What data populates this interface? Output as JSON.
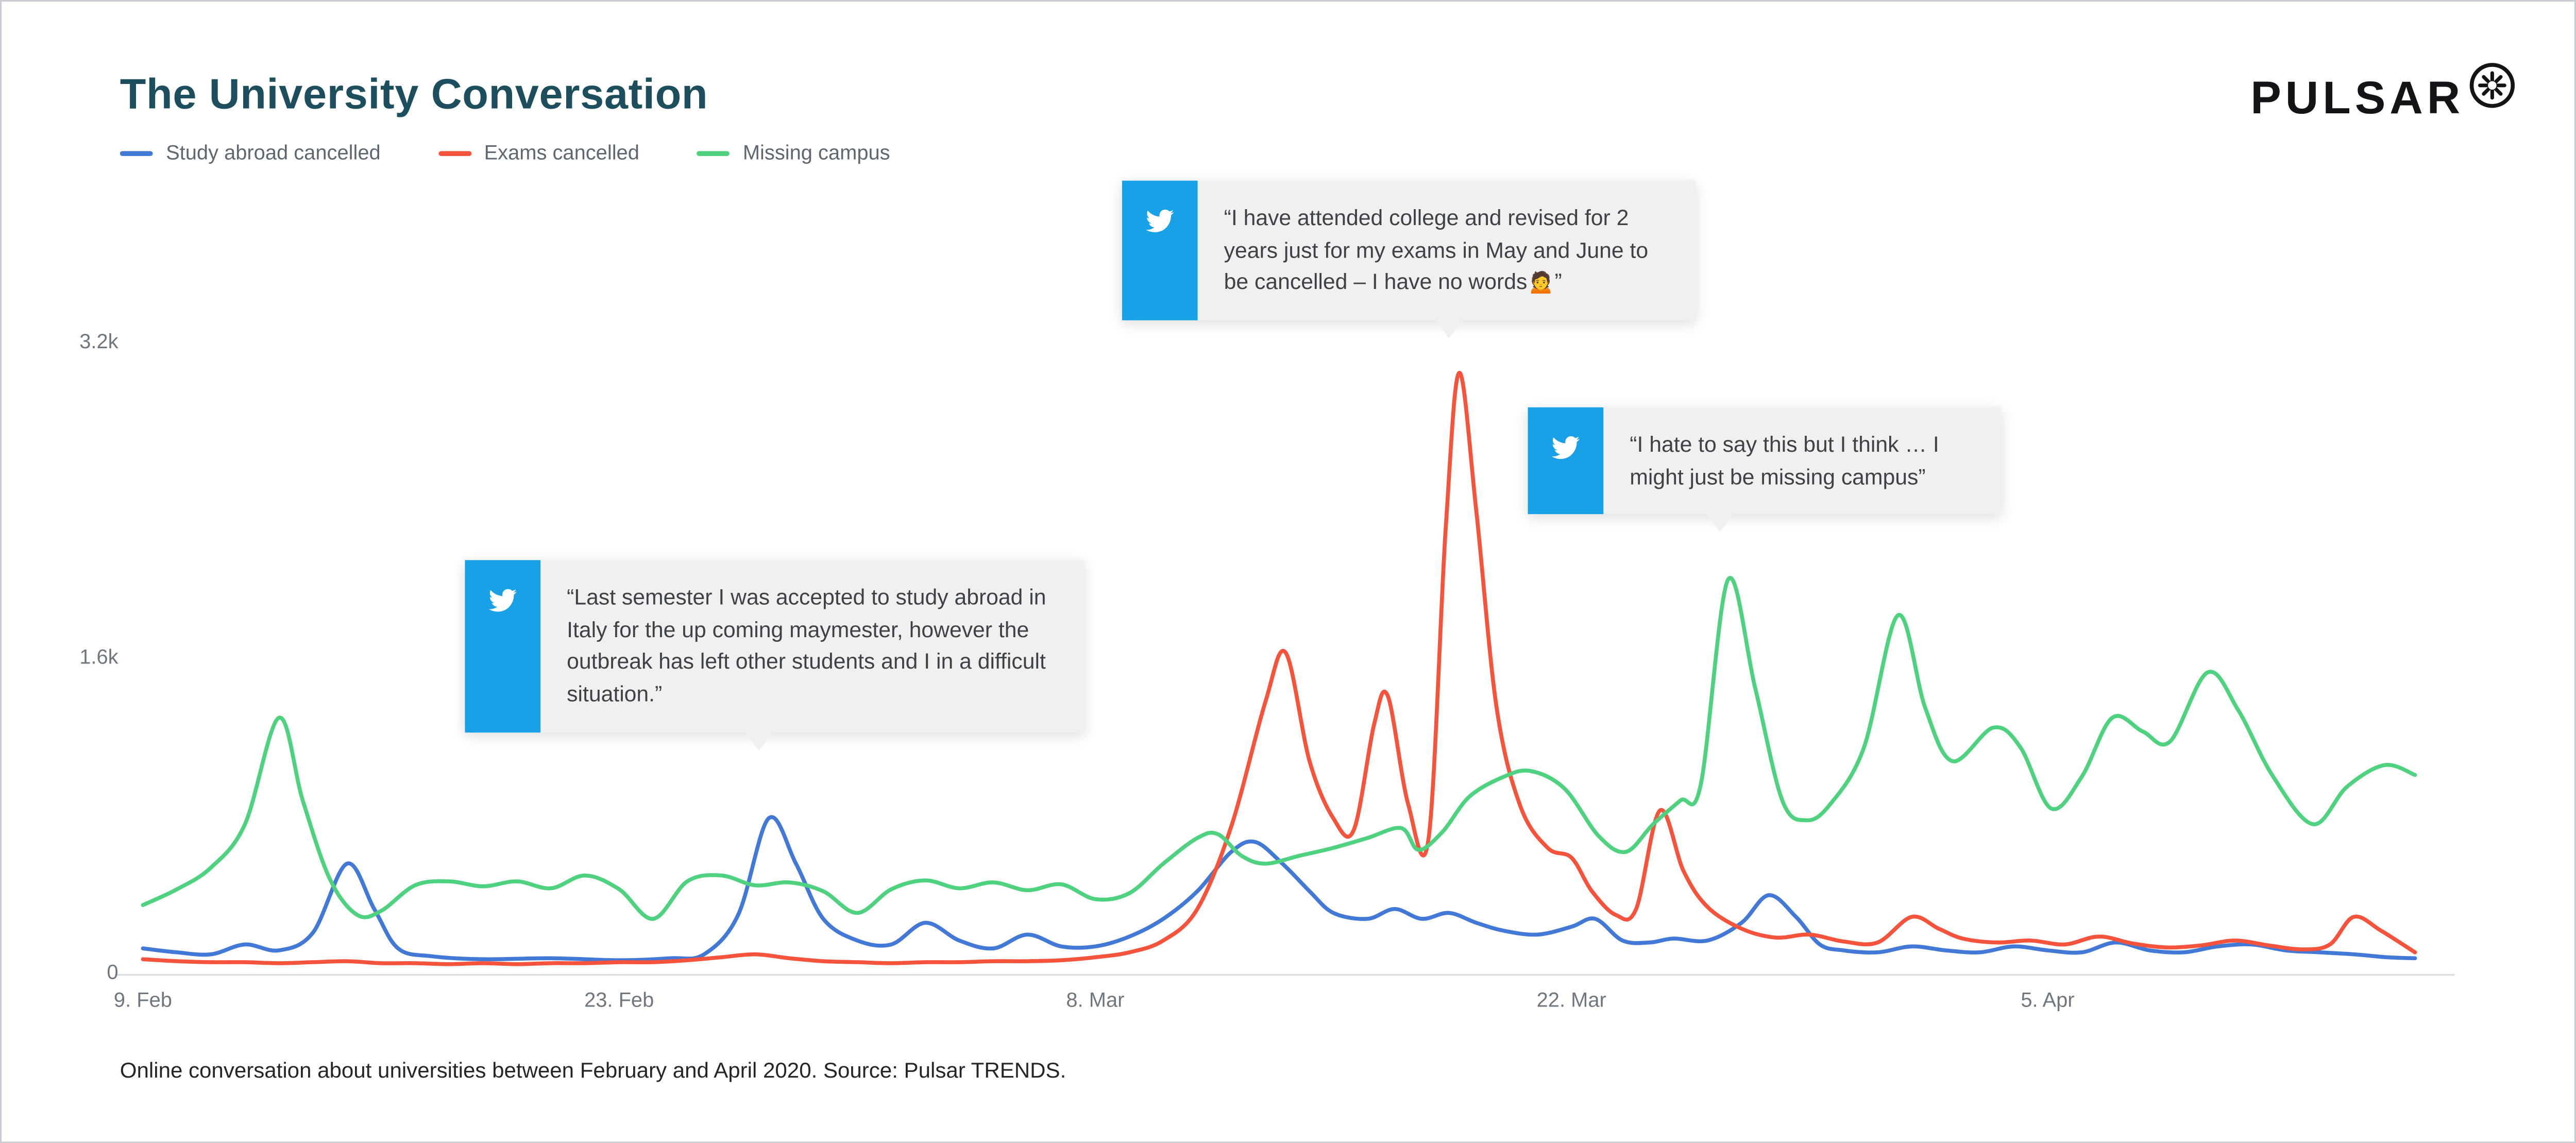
{
  "header": {
    "title": "The University Conversation",
    "brand": "PULSAR"
  },
  "caption": "Online conversation about universities between February and April 2020. Source: Pulsar TRENDS.",
  "colors": {
    "background": "#ffffff",
    "frame_border": "#c9ced4",
    "title": "#1c4e5d",
    "text_dark": "#22262a",
    "axis_label": "#6e7780",
    "legend_label": "#5d6771",
    "axis_line": "#d9dde1",
    "twitter_blue": "#18a1e6",
    "callout_bg": "#f0f0f1",
    "callout_text": "#3c4248",
    "brand": "#121417"
  },
  "annotations": [
    {
      "id": "exams",
      "icon": "twitter-icon",
      "text": "“I have attended college and revised for 2 years just for my exams in May and June to be cancelled – I have no words🙍”"
    },
    {
      "id": "missing-campus",
      "icon": "twitter-icon",
      "text": "“I hate to say this but I think … I might just be missing campus”"
    },
    {
      "id": "study-abroad",
      "icon": "twitter-icon",
      "text": "“Last semester I was accepted to study abroad in Italy for the up coming maymester, however the outbreak has left other students and I in a difficult situation.”"
    }
  ],
  "chart_data": {
    "type": "line",
    "title": "The University Conversation",
    "xlabel": "",
    "ylabel": "",
    "grid": false,
    "legend_position": "top-left",
    "x_axis": {
      "unit": "days since 9 Feb 2020",
      "tick_labels": [
        "9. Feb",
        "23. Feb",
        "8. Mar",
        "22. Mar",
        "5. Apr"
      ],
      "tick_days": [
        0,
        14,
        28,
        42,
        56
      ],
      "day_range": [
        0,
        66.8
      ]
    },
    "y_axis": {
      "tick_labels": [
        "0",
        "1.6k",
        "3.2k"
      ],
      "tick_values": [
        0,
        1600,
        3200
      ],
      "range": [
        0,
        3200
      ]
    },
    "series": [
      {
        "name": "Study abroad cancelled",
        "color": "#4379d6",
        "points": [
          [
            0,
            130
          ],
          [
            1,
            110
          ],
          [
            2,
            100
          ],
          [
            3,
            150
          ],
          [
            4,
            120
          ],
          [
            5,
            210
          ],
          [
            6,
            560
          ],
          [
            6.8,
            330
          ],
          [
            7.5,
            130
          ],
          [
            8.5,
            90
          ],
          [
            10,
            75
          ],
          [
            12,
            80
          ],
          [
            14,
            70
          ],
          [
            15.5,
            80
          ],
          [
            16.5,
            100
          ],
          [
            17.5,
            300
          ],
          [
            18.4,
            790
          ],
          [
            19.2,
            560
          ],
          [
            20,
            280
          ],
          [
            21,
            170
          ],
          [
            22,
            150
          ],
          [
            23,
            260
          ],
          [
            24,
            170
          ],
          [
            25,
            130
          ],
          [
            26,
            200
          ],
          [
            27,
            140
          ],
          [
            28,
            140
          ],
          [
            29,
            190
          ],
          [
            30,
            280
          ],
          [
            31,
            420
          ],
          [
            32,
            620
          ],
          [
            32.7,
            670
          ],
          [
            33.5,
            560
          ],
          [
            34.3,
            420
          ],
          [
            35,
            310
          ],
          [
            36,
            280
          ],
          [
            36.8,
            330
          ],
          [
            37.6,
            280
          ],
          [
            38.4,
            310
          ],
          [
            39.2,
            260
          ],
          [
            40,
            220
          ],
          [
            41,
            200
          ],
          [
            42,
            240
          ],
          [
            42.7,
            280
          ],
          [
            43.5,
            170
          ],
          [
            44.3,
            160
          ],
          [
            45,
            180
          ],
          [
            46,
            170
          ],
          [
            47,
            260
          ],
          [
            47.8,
            400
          ],
          [
            48.6,
            290
          ],
          [
            49.3,
            150
          ],
          [
            50,
            120
          ],
          [
            51,
            110
          ],
          [
            52,
            140
          ],
          [
            53,
            120
          ],
          [
            54,
            110
          ],
          [
            55,
            140
          ],
          [
            56,
            120
          ],
          [
            57,
            110
          ],
          [
            58,
            160
          ],
          [
            59,
            120
          ],
          [
            60,
            110
          ],
          [
            61,
            140
          ],
          [
            62,
            150
          ],
          [
            63,
            120
          ],
          [
            64,
            110
          ],
          [
            65,
            100
          ],
          [
            66,
            85
          ],
          [
            66.8,
            80
          ]
        ]
      },
      {
        "name": "Exams cancelled",
        "color": "#f5533c",
        "points": [
          [
            0,
            75
          ],
          [
            1,
            65
          ],
          [
            2,
            60
          ],
          [
            3,
            60
          ],
          [
            4,
            55
          ],
          [
            5,
            60
          ],
          [
            6,
            65
          ],
          [
            7,
            55
          ],
          [
            8,
            55
          ],
          [
            9,
            50
          ],
          [
            10,
            55
          ],
          [
            11,
            50
          ],
          [
            12,
            55
          ],
          [
            13,
            55
          ],
          [
            14,
            60
          ],
          [
            15,
            60
          ],
          [
            16,
            70
          ],
          [
            17,
            85
          ],
          [
            18,
            100
          ],
          [
            19,
            80
          ],
          [
            20,
            65
          ],
          [
            21,
            60
          ],
          [
            22,
            55
          ],
          [
            23,
            60
          ],
          [
            24,
            60
          ],
          [
            25,
            65
          ],
          [
            26,
            65
          ],
          [
            27,
            70
          ],
          [
            28,
            85
          ],
          [
            29,
            110
          ],
          [
            30,
            170
          ],
          [
            31,
            330
          ],
          [
            32,
            750
          ],
          [
            33,
            1380
          ],
          [
            33.6,
            1630
          ],
          [
            34.3,
            1080
          ],
          [
            35,
            790
          ],
          [
            35.6,
            730
          ],
          [
            36.2,
            1270
          ],
          [
            36.6,
            1410
          ],
          [
            37.2,
            860
          ],
          [
            37.8,
            690
          ],
          [
            38.3,
            2250
          ],
          [
            38.7,
            3050
          ],
          [
            39.2,
            2350
          ],
          [
            39.8,
            1350
          ],
          [
            40.5,
            850
          ],
          [
            41.3,
            640
          ],
          [
            42,
            590
          ],
          [
            42.6,
            420
          ],
          [
            43.3,
            300
          ],
          [
            43.9,
            330
          ],
          [
            44.6,
            830
          ],
          [
            45.3,
            520
          ],
          [
            46,
            340
          ],
          [
            47,
            230
          ],
          [
            48,
            185
          ],
          [
            49,
            200
          ],
          [
            50,
            165
          ],
          [
            51,
            160
          ],
          [
            52,
            290
          ],
          [
            52.8,
            230
          ],
          [
            53.5,
            180
          ],
          [
            54.5,
            160
          ],
          [
            55.5,
            170
          ],
          [
            56.5,
            150
          ],
          [
            57.5,
            190
          ],
          [
            58.5,
            155
          ],
          [
            59.5,
            135
          ],
          [
            60.5,
            145
          ],
          [
            61.5,
            170
          ],
          [
            62.5,
            145
          ],
          [
            63.5,
            125
          ],
          [
            64.3,
            150
          ],
          [
            65,
            290
          ],
          [
            65.8,
            220
          ],
          [
            66.8,
            110
          ]
        ]
      },
      {
        "name": "Missing campus",
        "color": "#4fd27f",
        "points": [
          [
            0,
            350
          ],
          [
            1,
            430
          ],
          [
            2,
            540
          ],
          [
            3,
            760
          ],
          [
            4,
            1300
          ],
          [
            4.7,
            880
          ],
          [
            5.5,
            480
          ],
          [
            6.3,
            300
          ],
          [
            7,
            320
          ],
          [
            8,
            450
          ],
          [
            9,
            470
          ],
          [
            10,
            445
          ],
          [
            11,
            470
          ],
          [
            12,
            435
          ],
          [
            13,
            500
          ],
          [
            14,
            430
          ],
          [
            15,
            280
          ],
          [
            16,
            470
          ],
          [
            17,
            500
          ],
          [
            18,
            450
          ],
          [
            19,
            465
          ],
          [
            20,
            420
          ],
          [
            21,
            310
          ],
          [
            22,
            430
          ],
          [
            23,
            475
          ],
          [
            24,
            435
          ],
          [
            25,
            465
          ],
          [
            26,
            425
          ],
          [
            27,
            455
          ],
          [
            28,
            380
          ],
          [
            29,
            410
          ],
          [
            30,
            560
          ],
          [
            31,
            690
          ],
          [
            31.6,
            710
          ],
          [
            32.3,
            600
          ],
          [
            33,
            560
          ],
          [
            34,
            600
          ],
          [
            35,
            640
          ],
          [
            36,
            690
          ],
          [
            37,
            740
          ],
          [
            37.5,
            630
          ],
          [
            38.2,
            720
          ],
          [
            39,
            900
          ],
          [
            40,
            1000
          ],
          [
            40.8,
            1030
          ],
          [
            41.8,
            940
          ],
          [
            42.8,
            700
          ],
          [
            43.6,
            620
          ],
          [
            44.4,
            760
          ],
          [
            45.2,
            880
          ],
          [
            45.8,
            960
          ],
          [
            46.6,
            2000
          ],
          [
            47.4,
            1450
          ],
          [
            48.2,
            880
          ],
          [
            48.9,
            780
          ],
          [
            49.6,
            860
          ],
          [
            50.6,
            1150
          ],
          [
            51.6,
            1820
          ],
          [
            52.4,
            1350
          ],
          [
            53.2,
            1080
          ],
          [
            54.4,
            1250
          ],
          [
            55.2,
            1150
          ],
          [
            56.1,
            840
          ],
          [
            57,
            1000
          ],
          [
            57.9,
            1300
          ],
          [
            58.8,
            1230
          ],
          [
            59.6,
            1180
          ],
          [
            60.7,
            1530
          ],
          [
            61.6,
            1340
          ],
          [
            62.6,
            1010
          ],
          [
            63.8,
            760
          ],
          [
            64.8,
            950
          ],
          [
            65.9,
            1060
          ],
          [
            66.8,
            1010
          ]
        ]
      }
    ]
  }
}
